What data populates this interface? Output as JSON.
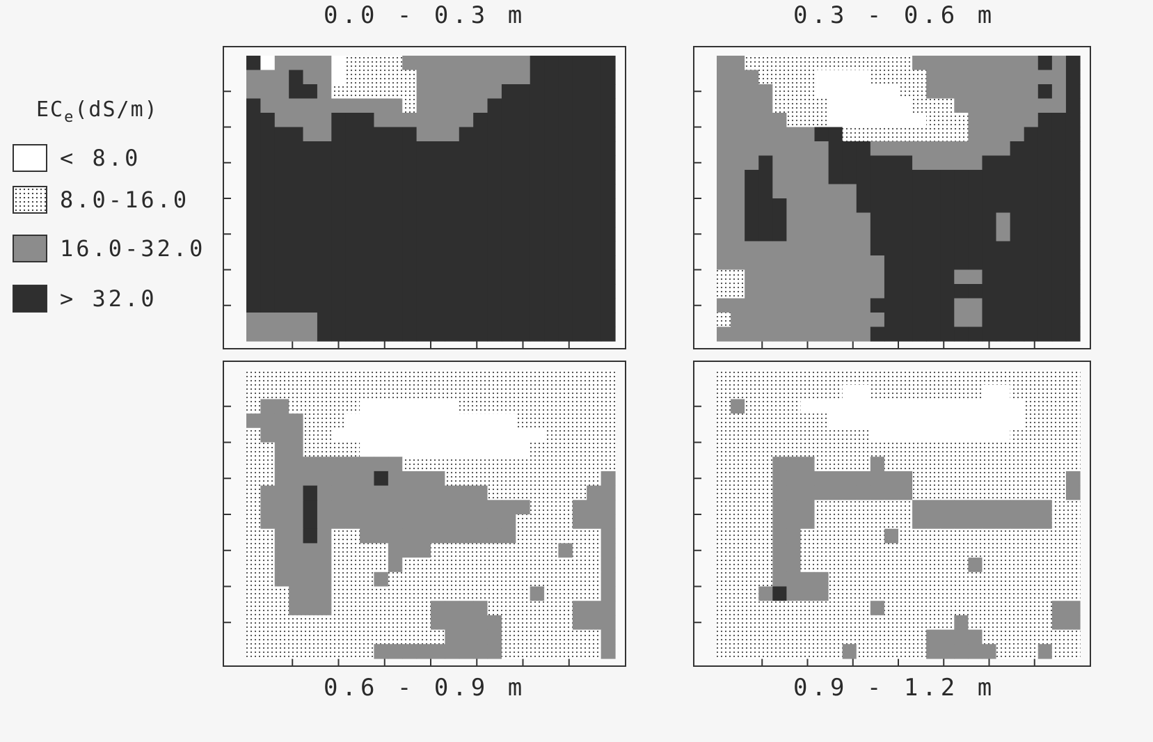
{
  "legend": {
    "title_main": "EC",
    "title_sub": "e",
    "title_unit": "(dS/m)",
    "items": [
      {
        "label": "< 8.0",
        "pattern": "blank",
        "color": "#ffffff"
      },
      {
        "label": "8.0-16.0",
        "pattern": "dots",
        "color": "#444444"
      },
      {
        "label": "16.0-32.0",
        "pattern": "dense-gray",
        "color": "#8c8c8c"
      },
      {
        "label": "> 32.0",
        "pattern": "solid-dark",
        "color": "#2f2f2f"
      }
    ]
  },
  "panels": [
    {
      "depth": "0.0 - 0.3 m"
    },
    {
      "depth": "0.3 - 0.6 m"
    },
    {
      "depth": "0.6 - 0.9 m"
    },
    {
      "depth": "0.9 - 1.2 m"
    }
  ],
  "map_grid": {
    "rows": 20,
    "cols": 26,
    "class_codes": "0 = <8.0, 1 = 8.0-16.0, 2 = 16.0-32.0, 3 = >32.0",
    "layers": [
      [
        "30222201111222222222333333",
        "22232201111122222222333333",
        "22233211111122222233333333",
        "32222222222122222333333333",
        "33222233322222223333333333",
        "33332233333322233333333333",
        "33333333333333333333333333",
        "33333333333333333333333333",
        "33333333333333333333333333",
        "33333333333333333333333333",
        "33333333333333333333333333",
        "33333333333333333333333333",
        "33333333333333333333333333",
        "33333333333333333333333333",
        "33333333333333333333333333",
        "33333333333333333333333333",
        "33333333333333333333333333",
        "33333333333333333333333333",
        "22222333333333333333333333",
        "22222333333333333333333333"
      ],
      [
        "22111111111111222222222323",
        "22211110000111122222222223",
        "22221110000001122222222323",
        "22221111000000111222222223",
        "22222111000000011122222333",
        "22222223311111111122223333",
        "22222222333222222222233333",
        "22232222333333222223333333",
        "22332222333333333333333333",
        "22332222223333333333333333",
        "22333222223333333333333333",
        "22333222222333333333233333",
        "22333222222333333333233333",
        "22222222222333333333333333",
        "22222222222233333333333333",
        "11222222222233333223333333",
        "11222222222233333333333333",
        "22222222222333333223333333",
        "12222222222233333223333333",
        "22222222222333333333333333"
      ],
      [
        "11111111111111111111111111",
        "11111111111111111111111111",
        "12211111000000011111111111",
        "22221110000000000001111111",
        "12221100000000000000011111",
        "11221111000000000000111111",
        "11222222222111111111111111",
        "11222222232222111111111112",
        "12223222222222222111111122",
        "12223222222222222222111222",
        "12223222222222222221111222",
        "11223211222222222221111112",
        "11222211112221111111112112",
        "11222211112111111111111112",
        "11222211121111111111111112",
        "11122211111111111111211112",
        "11122211111112222111111222",
        "11111111111112222211111222",
        "11111111111111222211111112",
        "11111111122222222211111112"
      ],
      [
        "11111111111111111111111111",
        "11111111100111111110011111",
        "12111100000000000000001111",
        "11111111000000000000001111",
        "11111111111000000000011111",
        "11111111111111111111111111",
        "11112221111211111111111111",
        "11112222222222111111111112",
        "11112222222222111111111112",
        "11112221111111222222222211",
        "11112221111111222222222211",
        "11112211111121111111111111",
        "11112211111111111111111111",
        "11112211111111111121111111",
        "11112222111111111111111111",
        "11123222111111111111111111",
        "11111111111211111111111122",
        "11111111111111111211111122",
        "11111111111111122221111111",
        "11111111121111122222111211"
      ]
    ]
  }
}
